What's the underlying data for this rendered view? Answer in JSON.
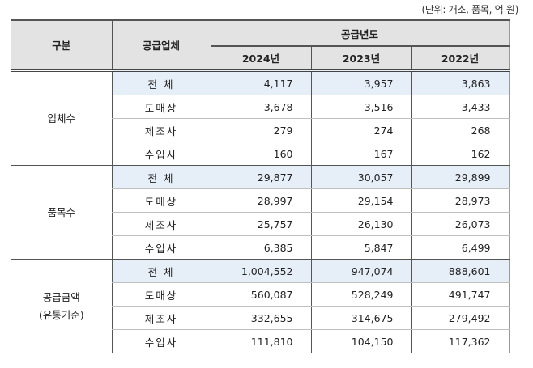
{
  "unit_note": "(단위: 개소, 품목, 억 원)",
  "header": {
    "category": "구분",
    "supplier": "공급업체",
    "supply_year": "공급년도",
    "years": [
      "2024년",
      "2023년",
      "2022년"
    ]
  },
  "groups": [
    {
      "label_line1": "업체수",
      "label_line2": "",
      "rows": [
        {
          "supplier": "전 체",
          "values": [
            "4,117",
            "3,957",
            "3,863"
          ]
        },
        {
          "supplier": "도매상",
          "values": [
            "3,678",
            "3,516",
            "3,433"
          ]
        },
        {
          "supplier": "제조사",
          "values": [
            "279",
            "274",
            "268"
          ]
        },
        {
          "supplier": "수입사",
          "values": [
            "160",
            "167",
            "162"
          ]
        }
      ]
    },
    {
      "label_line1": "품목수",
      "label_line2": "",
      "rows": [
        {
          "supplier": "전 체",
          "values": [
            "29,877",
            "30,057",
            "29,899"
          ]
        },
        {
          "supplier": "도매상",
          "values": [
            "28,997",
            "29,154",
            "28,973"
          ]
        },
        {
          "supplier": "제조사",
          "values": [
            "25,757",
            "26,130",
            "26,073"
          ]
        },
        {
          "supplier": "수입사",
          "values": [
            "6,385",
            "5,847",
            "6,499"
          ]
        }
      ]
    },
    {
      "label_line1": "공급금액",
      "label_line2": "(유통기준)",
      "rows": [
        {
          "supplier": "전 체",
          "values": [
            "1,004,552",
            "947,074",
            "888,601"
          ]
        },
        {
          "supplier": "도매상",
          "values": [
            "560,087",
            "528,249",
            "491,747"
          ]
        },
        {
          "supplier": "제조사",
          "values": [
            "332,655",
            "314,675",
            "279,492"
          ]
        },
        {
          "supplier": "수입사",
          "values": [
            "111,810",
            "104,150",
            "117,362"
          ]
        }
      ]
    }
  ],
  "colors": {
    "header_bg": "#e3e3e3",
    "total_row_bg": "#e6eef8",
    "border": "#555555"
  }
}
